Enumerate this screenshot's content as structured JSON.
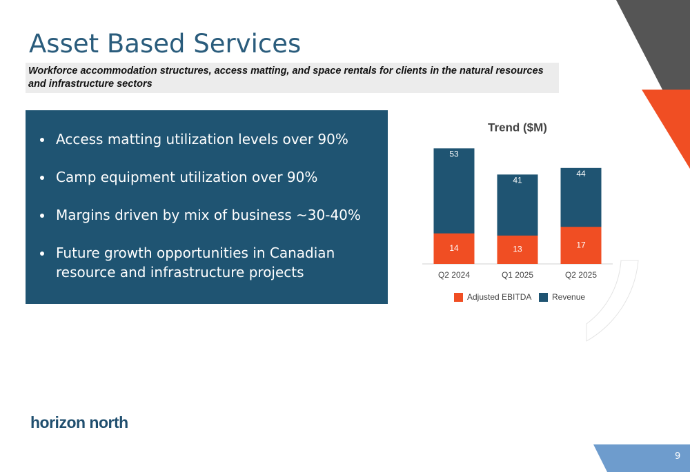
{
  "header": {
    "title": "Asset Based Services",
    "subtitle": "Workforce accommodation structures, access matting, and space rentals for clients in the natural resources and infrastructure sectors"
  },
  "bullets": [
    "Access matting utilization levels over 90%",
    "Camp equipment utilization over 90%",
    "Margins driven by mix of business ~30-40%",
    "Future growth opportunities in Canadian resource and infrastructure projects"
  ],
  "chart_data": {
    "type": "bar",
    "title": "Trend ($M)",
    "categories": [
      "Q2 2024",
      "Q1 2025",
      "Q2 2025"
    ],
    "series": [
      {
        "name": "Adjusted EBITDA",
        "color": "#f04e23",
        "values": [
          14,
          13,
          17
        ]
      },
      {
        "name": "Revenue",
        "color": "#1f5472",
        "values": [
          53,
          41,
          44
        ]
      }
    ],
    "ylim": [
      0,
      55
    ]
  },
  "footer": {
    "logo": "horizon north",
    "page": "9"
  }
}
